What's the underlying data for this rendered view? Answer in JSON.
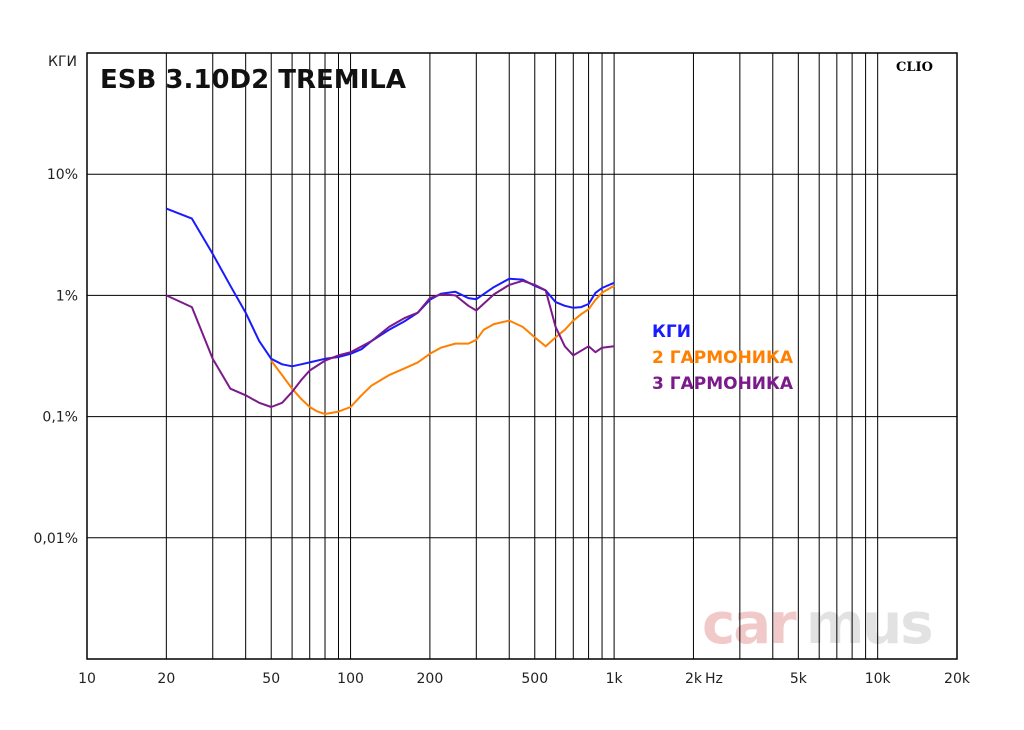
{
  "chart_data": {
    "type": "line",
    "title": "ESB 3.10D2 TREMILA",
    "ylabel": "КГИ",
    "xunit": "Hz",
    "brand": "CLIO",
    "watermark": {
      "part1": "car",
      "part2": "mus"
    },
    "x_scale": "log",
    "y_scale": "log",
    "xlim": [
      10,
      20000
    ],
    "ylim": [
      0.001,
      100
    ],
    "x_ticks": [
      {
        "value": 10,
        "label": "10"
      },
      {
        "value": 20,
        "label": "20"
      },
      {
        "value": 50,
        "label": "50"
      },
      {
        "value": 100,
        "label": "100"
      },
      {
        "value": 200,
        "label": "200"
      },
      {
        "value": 500,
        "label": "500"
      },
      {
        "value": 1000,
        "label": "1k"
      },
      {
        "value": 2000,
        "label": "2k"
      },
      {
        "value": 5000,
        "label": "5k"
      },
      {
        "value": 10000,
        "label": "10k"
      },
      {
        "value": 20000,
        "label": "20k"
      }
    ],
    "y_ticks": [
      {
        "value": 10,
        "label": "10%"
      },
      {
        "value": 1,
        "label": "1%"
      },
      {
        "value": 0.1,
        "label": "0,1%"
      },
      {
        "value": 0.01,
        "label": "0,01%"
      }
    ],
    "grid": true,
    "legend_position": "right",
    "series": [
      {
        "name": "КГИ",
        "color": "#1a1aff",
        "x": [
          20,
          25,
          30,
          35,
          40,
          45,
          50,
          55,
          60,
          65,
          70,
          80,
          90,
          100,
          110,
          120,
          140,
          160,
          180,
          200,
          220,
          250,
          280,
          300,
          350,
          400,
          450,
          500,
          550,
          600,
          650,
          700,
          750,
          800,
          850,
          900,
          1000
        ],
        "y": [
          5.2,
          4.3,
          2.2,
          1.2,
          0.72,
          0.42,
          0.3,
          0.27,
          0.26,
          0.27,
          0.28,
          0.3,
          0.31,
          0.33,
          0.36,
          0.42,
          0.52,
          0.61,
          0.72,
          0.92,
          1.03,
          1.07,
          0.95,
          0.93,
          1.17,
          1.37,
          1.35,
          1.2,
          1.1,
          0.88,
          0.82,
          0.79,
          0.8,
          0.85,
          1.05,
          1.15,
          1.27
        ]
      },
      {
        "name": "2 ГАРМОНИКА",
        "color": "#ff8000",
        "x": [
          50,
          55,
          60,
          65,
          70,
          75,
          80,
          90,
          100,
          110,
          120,
          140,
          160,
          180,
          200,
          220,
          250,
          280,
          300,
          320,
          350,
          400,
          450,
          500,
          550,
          600,
          650,
          700,
          750,
          800,
          850,
          900,
          1000
        ],
        "y": [
          0.29,
          0.22,
          0.17,
          0.14,
          0.12,
          0.11,
          0.105,
          0.11,
          0.12,
          0.15,
          0.18,
          0.22,
          0.25,
          0.28,
          0.33,
          0.37,
          0.4,
          0.4,
          0.43,
          0.52,
          0.58,
          0.62,
          0.55,
          0.45,
          0.38,
          0.45,
          0.52,
          0.62,
          0.7,
          0.77,
          0.92,
          1.05,
          1.2
        ]
      },
      {
        "name": "3 ГАРМОНИКА",
        "color": "#7b1a8a",
        "x": [
          20,
          25,
          30,
          35,
          40,
          45,
          50,
          55,
          60,
          65,
          70,
          80,
          90,
          100,
          120,
          140,
          160,
          180,
          200,
          220,
          250,
          280,
          300,
          350,
          400,
          450,
          500,
          550,
          600,
          650,
          700,
          750,
          800,
          850,
          900,
          1000
        ],
        "y": [
          1.0,
          0.8,
          0.3,
          0.17,
          0.15,
          0.13,
          0.12,
          0.13,
          0.16,
          0.2,
          0.24,
          0.29,
          0.32,
          0.34,
          0.42,
          0.55,
          0.65,
          0.72,
          0.95,
          1.02,
          1.0,
          0.82,
          0.75,
          1.02,
          1.22,
          1.32,
          1.22,
          1.1,
          0.55,
          0.38,
          0.32,
          0.35,
          0.38,
          0.34,
          0.37,
          0.38
        ]
      }
    ]
  }
}
